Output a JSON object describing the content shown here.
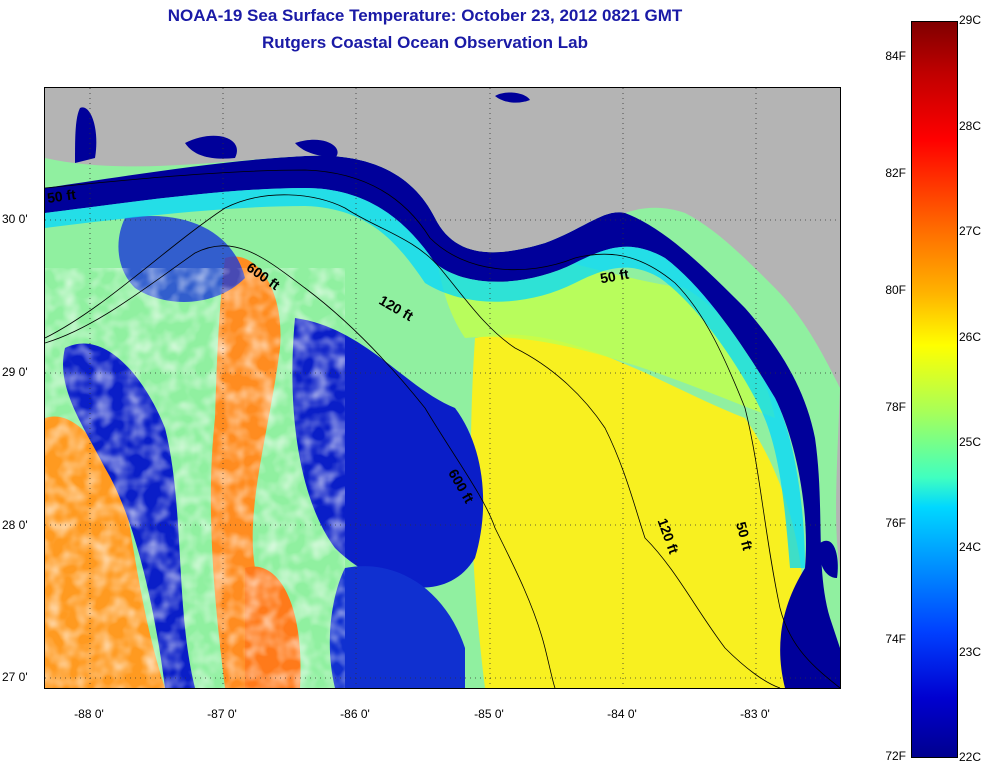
{
  "title_line1": "NOAA-19 Sea Surface Temperature:  October 23, 2012 0821 GMT",
  "title_line2": "Rutgers Coastal Ocean Observation Lab",
  "lat_labels": [
    "30 0'",
    "29 0'",
    "28 0'",
    "27 0'"
  ],
  "lon_labels": [
    "-88 0'",
    "-87 0'",
    "-86 0'",
    "-85 0'",
    "-84 0'",
    "-83 0'"
  ],
  "contour_labels": [
    "50 ft",
    "600 ft",
    "120 ft",
    "50 ft",
    "600 ft",
    "120 ft",
    "50 ft"
  ],
  "colorbar": {
    "celsius_labels": [
      "29C",
      "28C",
      "27C",
      "26C",
      "25C",
      "24C",
      "23C",
      "22C"
    ],
    "fahrenheit_labels": [
      "84F",
      "82F",
      "80F",
      "78F",
      "76F",
      "74F",
      "72F"
    ],
    "colors": [
      "#800000",
      "#ff0000",
      "#ff8c00",
      "#ffff00",
      "#40ffc0",
      "#00a0ff",
      "#0000d0",
      "#00008f"
    ]
  },
  "colors": {
    "land": "#b4b4b4",
    "coastal_cold": "#00009a",
    "mid_water": "#90f0a0",
    "warm_water": "#f8f020",
    "offshore_warm": "#ff9a20"
  }
}
